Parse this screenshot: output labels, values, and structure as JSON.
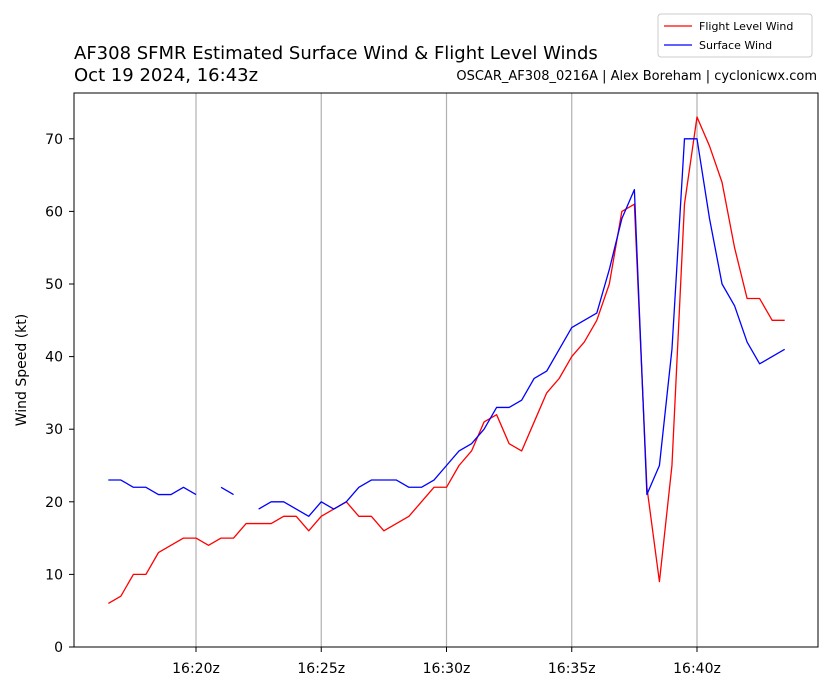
{
  "chart_data": {
    "type": "line",
    "title": "AF308 SFMR Estimated Surface Wind & Flight Level Winds",
    "subtitle": "Oct 19 2024, 16:43z",
    "source": "OSCAR_AF308_0216A | Alex Boreham | cyclonicwx.com",
    "ylabel": "Wind Speed (kt)",
    "xlabel": "",
    "ylim": [
      0,
      76
    ],
    "yticks": [
      0,
      10,
      20,
      30,
      40,
      50,
      60,
      70
    ],
    "xticks": [
      {
        "value": 20,
        "label": "16:20z"
      },
      {
        "value": 25,
        "label": "16:25z"
      },
      {
        "value": 30,
        "label": "16:30z"
      },
      {
        "value": 35,
        "label": "16:35z"
      },
      {
        "value": 40,
        "label": "16:40z"
      }
    ],
    "x_unit": "minutes past 16:00z",
    "xlim": [
      15,
      45
    ],
    "grid": "vertical",
    "legend": "top-right",
    "series": [
      {
        "name": "Flight Level Wind",
        "color": "#ff0000",
        "points": [
          [
            16.5,
            6
          ],
          [
            17.0,
            7
          ],
          [
            17.5,
            10
          ],
          [
            18.0,
            10
          ],
          [
            18.5,
            13
          ],
          [
            19.0,
            14
          ],
          [
            19.5,
            15
          ],
          [
            20.0,
            15
          ],
          [
            20.5,
            14
          ],
          [
            21.0,
            15
          ],
          [
            21.5,
            15
          ],
          [
            22.0,
            17
          ],
          [
            22.5,
            17
          ],
          [
            23.0,
            17
          ],
          [
            23.5,
            18
          ],
          [
            24.0,
            18
          ],
          [
            24.5,
            16
          ],
          [
            25.0,
            18
          ],
          [
            25.5,
            19
          ],
          [
            26.0,
            20
          ],
          [
            26.5,
            18
          ],
          [
            27.0,
            18
          ],
          [
            27.5,
            16
          ],
          [
            28.0,
            17
          ],
          [
            28.5,
            18
          ],
          [
            29.0,
            20
          ],
          [
            29.5,
            22
          ],
          [
            30.0,
            22
          ],
          [
            30.5,
            25
          ],
          [
            31.0,
            27
          ],
          [
            31.5,
            31
          ],
          [
            32.0,
            32
          ],
          [
            32.5,
            28
          ],
          [
            33.0,
            27
          ],
          [
            33.5,
            31
          ],
          [
            34.0,
            35
          ],
          [
            34.5,
            37
          ],
          [
            35.0,
            40
          ],
          [
            35.5,
            42
          ],
          [
            36.0,
            45
          ],
          [
            36.5,
            50
          ],
          [
            37.0,
            60
          ],
          [
            37.5,
            61
          ],
          [
            38.0,
            22
          ],
          [
            38.5,
            9
          ],
          [
            39.0,
            25
          ],
          [
            39.5,
            61
          ],
          [
            40.0,
            73
          ],
          [
            40.5,
            69
          ],
          [
            41.0,
            64
          ],
          [
            41.5,
            55
          ],
          [
            42.0,
            48
          ],
          [
            42.5,
            48
          ],
          [
            43.0,
            45
          ],
          [
            43.5,
            45
          ]
        ]
      },
      {
        "name": "Surface Wind",
        "color": "#0000ff",
        "points": [
          [
            16.5,
            23
          ],
          [
            17.0,
            23
          ],
          [
            17.5,
            22
          ],
          [
            18.0,
            22
          ],
          [
            18.5,
            21
          ],
          [
            19.0,
            21
          ],
          [
            19.5,
            22
          ],
          [
            20.0,
            21
          ],
          null,
          [
            21.0,
            22
          ],
          [
            21.5,
            21
          ],
          null,
          [
            22.5,
            19
          ],
          [
            23.0,
            20
          ],
          [
            23.5,
            20
          ],
          [
            24.0,
            19
          ],
          [
            24.5,
            18
          ],
          [
            25.0,
            20
          ],
          [
            25.5,
            19
          ],
          [
            26.0,
            20
          ],
          [
            26.5,
            22
          ],
          [
            27.0,
            23
          ],
          [
            27.5,
            23
          ],
          [
            28.0,
            23
          ],
          [
            28.5,
            22
          ],
          [
            29.0,
            22
          ],
          [
            29.5,
            23
          ],
          [
            30.0,
            25
          ],
          [
            30.5,
            27
          ],
          [
            31.0,
            28
          ],
          [
            31.5,
            30
          ],
          [
            32.0,
            33
          ],
          [
            32.5,
            33
          ],
          [
            33.0,
            34
          ],
          [
            33.5,
            37
          ],
          [
            34.0,
            38
          ],
          [
            34.5,
            41
          ],
          [
            35.0,
            44
          ],
          [
            35.5,
            45
          ],
          [
            36.0,
            46
          ],
          [
            36.5,
            52
          ],
          [
            37.0,
            59
          ],
          [
            37.5,
            63
          ],
          [
            38.0,
            21
          ],
          [
            38.5,
            25
          ],
          [
            39.0,
            41
          ],
          [
            39.5,
            70
          ],
          [
            40.0,
            70
          ],
          [
            40.5,
            59
          ],
          [
            41.0,
            50
          ],
          [
            41.5,
            47
          ],
          [
            42.0,
            42
          ],
          [
            42.5,
            39
          ],
          [
            43.0,
            40
          ],
          [
            43.5,
            41
          ]
        ]
      }
    ]
  }
}
